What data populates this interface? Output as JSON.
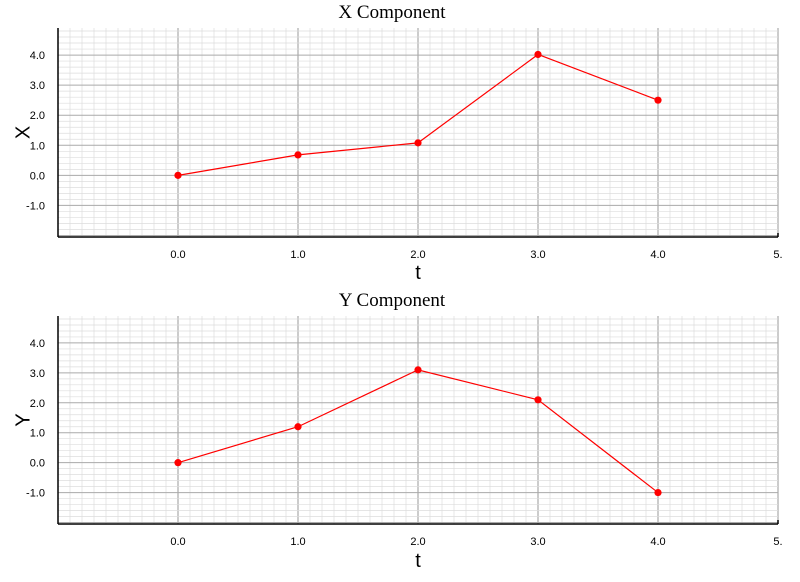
{
  "chart_data": [
    {
      "type": "line",
      "title": "X Component",
      "xlabel": "t",
      "ylabel": "X",
      "x": [
        0,
        1,
        2,
        3,
        4
      ],
      "series": [
        {
          "values": [
            0.0,
            0.68,
            1.08,
            4.02,
            2.5
          ]
        }
      ],
      "xlim": [
        -1,
        5
      ],
      "ylim": [
        -2.05,
        4.9
      ],
      "xticks": [
        "0.0",
        "1.0",
        "2.0",
        "3.0",
        "4.0",
        "5."
      ],
      "yticks": [
        "-1.0",
        "0.0",
        "1.0",
        "2.0",
        "3.0",
        "4.0"
      ],
      "grid": true,
      "line_color": "#ff0000"
    },
    {
      "type": "line",
      "title": "Y Component",
      "xlabel": "t",
      "ylabel": "Y",
      "x": [
        0,
        1,
        2,
        3,
        4
      ],
      "series": [
        {
          "values": [
            0.0,
            1.2,
            3.1,
            2.1,
            -1.0
          ]
        }
      ],
      "xlim": [
        -1,
        5
      ],
      "ylim": [
        -2.05,
        4.9
      ],
      "xticks": [
        "0.0",
        "1.0",
        "2.0",
        "3.0",
        "4.0",
        "5."
      ],
      "yticks": [
        "-1.0",
        "0.0",
        "1.0",
        "2.0",
        "3.0",
        "4.0"
      ],
      "grid": true,
      "line_color": "#ff0000"
    }
  ]
}
